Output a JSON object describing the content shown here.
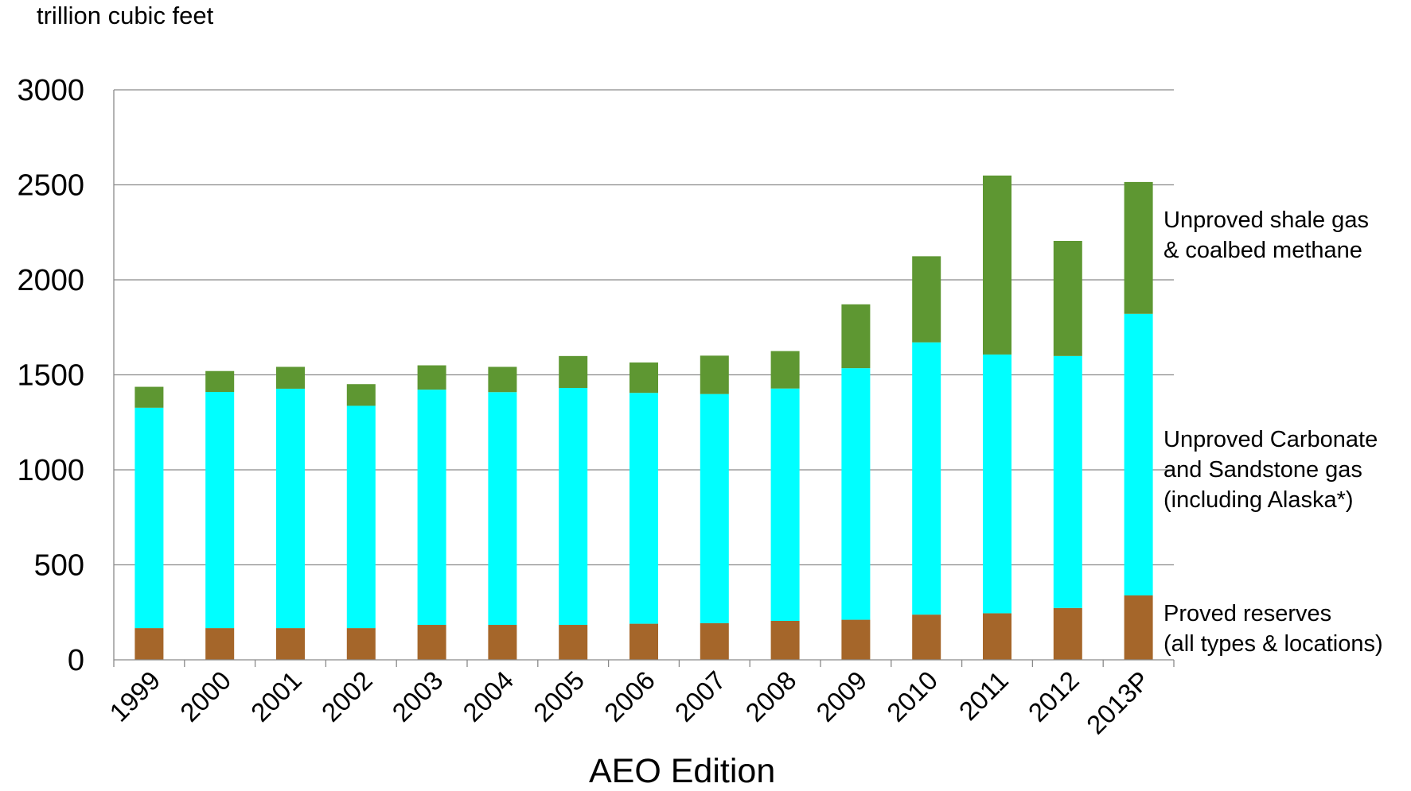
{
  "chart_data": {
    "type": "bar",
    "stacked": true,
    "y_unit_label": "trillion cubic feet",
    "xlabel": "AEO Edition",
    "ylabel": "",
    "ylim": [
      0,
      3000
    ],
    "yticks": [
      0,
      500,
      1000,
      1500,
      2000,
      2500,
      3000
    ],
    "grid": true,
    "categories": [
      "1999",
      "2000",
      "2001",
      "2002",
      "2003",
      "2004",
      "2005",
      "2006",
      "2007",
      "2008",
      "2009",
      "2010",
      "2011",
      "2012",
      "2013P"
    ],
    "series": [
      {
        "name": "Proved reserves\n(all types & locations)",
        "color": "#A5662A",
        "values": [
          167,
          167,
          167,
          167,
          184,
          184,
          184,
          190,
          193,
          205,
          211,
          238,
          245,
          273,
          339
        ]
      },
      {
        "name": "Unproved Carbonate\nand Sandstone gas\n(including Alaska*)",
        "color": "#00FFFF",
        "values": [
          1160,
          1243,
          1260,
          1170,
          1238,
          1225,
          1247,
          1215,
          1206,
          1223,
          1324,
          1433,
          1362,
          1326,
          1482
        ]
      },
      {
        "name": "Unproved shale gas\n& coalbed methane",
        "color": "#5E9732",
        "values": [
          110,
          110,
          115,
          114,
          128,
          133,
          168,
          160,
          202,
          197,
          336,
          453,
          942,
          606,
          694
        ]
      }
    ]
  }
}
